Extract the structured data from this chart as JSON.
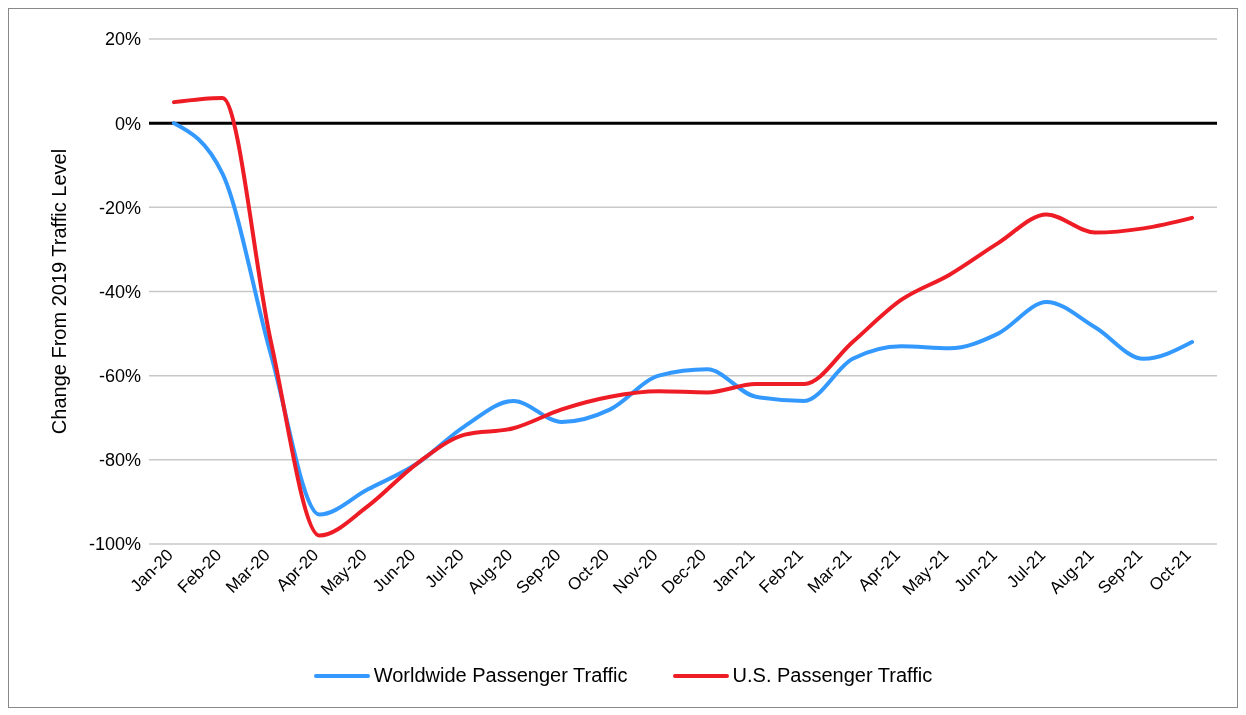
{
  "chart_data": {
    "type": "line",
    "ylabel": "Change From 2019 Traffic Level",
    "categories": [
      "Jan-20",
      "Feb-20",
      "Mar-20",
      "Apr-20",
      "May-20",
      "Jun-20",
      "Jul-20",
      "Aug-20",
      "Sep-20",
      "Oct-20",
      "Nov-20",
      "Dec-20",
      "Jan-21",
      "Feb-21",
      "Mar-21",
      "Apr-21",
      "May-21",
      "Jun-21",
      "Jul-21",
      "Aug-21",
      "Sep-21",
      "Oct-21"
    ],
    "series": [
      {
        "name": "Worldwide Passenger Traffic",
        "color": "#3399ff",
        "values": [
          0,
          -12,
          -55,
          -93,
          -87,
          -81,
          -72,
          -66,
          -71,
          -68,
          -60,
          -58.5,
          -65,
          -66,
          -56,
          -53,
          -53.5,
          -50,
          -42.5,
          -48.5,
          -56,
          -52
        ]
      },
      {
        "name": "U.S. Passenger Traffic",
        "color": "#ee1c25",
        "values": [
          5,
          6,
          -52,
          -98,
          -91,
          -81,
          -74,
          -72.5,
          -68,
          -65,
          -63.7,
          -64,
          -62,
          -62,
          -52,
          -42,
          -36,
          -28.5,
          -21.7,
          -26,
          -25,
          -22.5
        ]
      }
    ],
    "ylim": [
      -100,
      20
    ],
    "yticks": [
      {
        "value": -100,
        "label": "-100%"
      },
      {
        "value": -80,
        "label": "-80%"
      },
      {
        "value": -60,
        "label": "-60%"
      },
      {
        "value": -40,
        "label": "-40%"
      },
      {
        "value": -20,
        "label": "-20%"
      },
      {
        "value": 0,
        "label": "0%"
      },
      {
        "value": 20,
        "label": "20%"
      }
    ],
    "ref_lines": [
      {
        "axis": "y",
        "value": 0,
        "color": "#000000"
      }
    ],
    "grid": "y",
    "legend": "bottom",
    "marker": "none",
    "line_style": "solid"
  }
}
